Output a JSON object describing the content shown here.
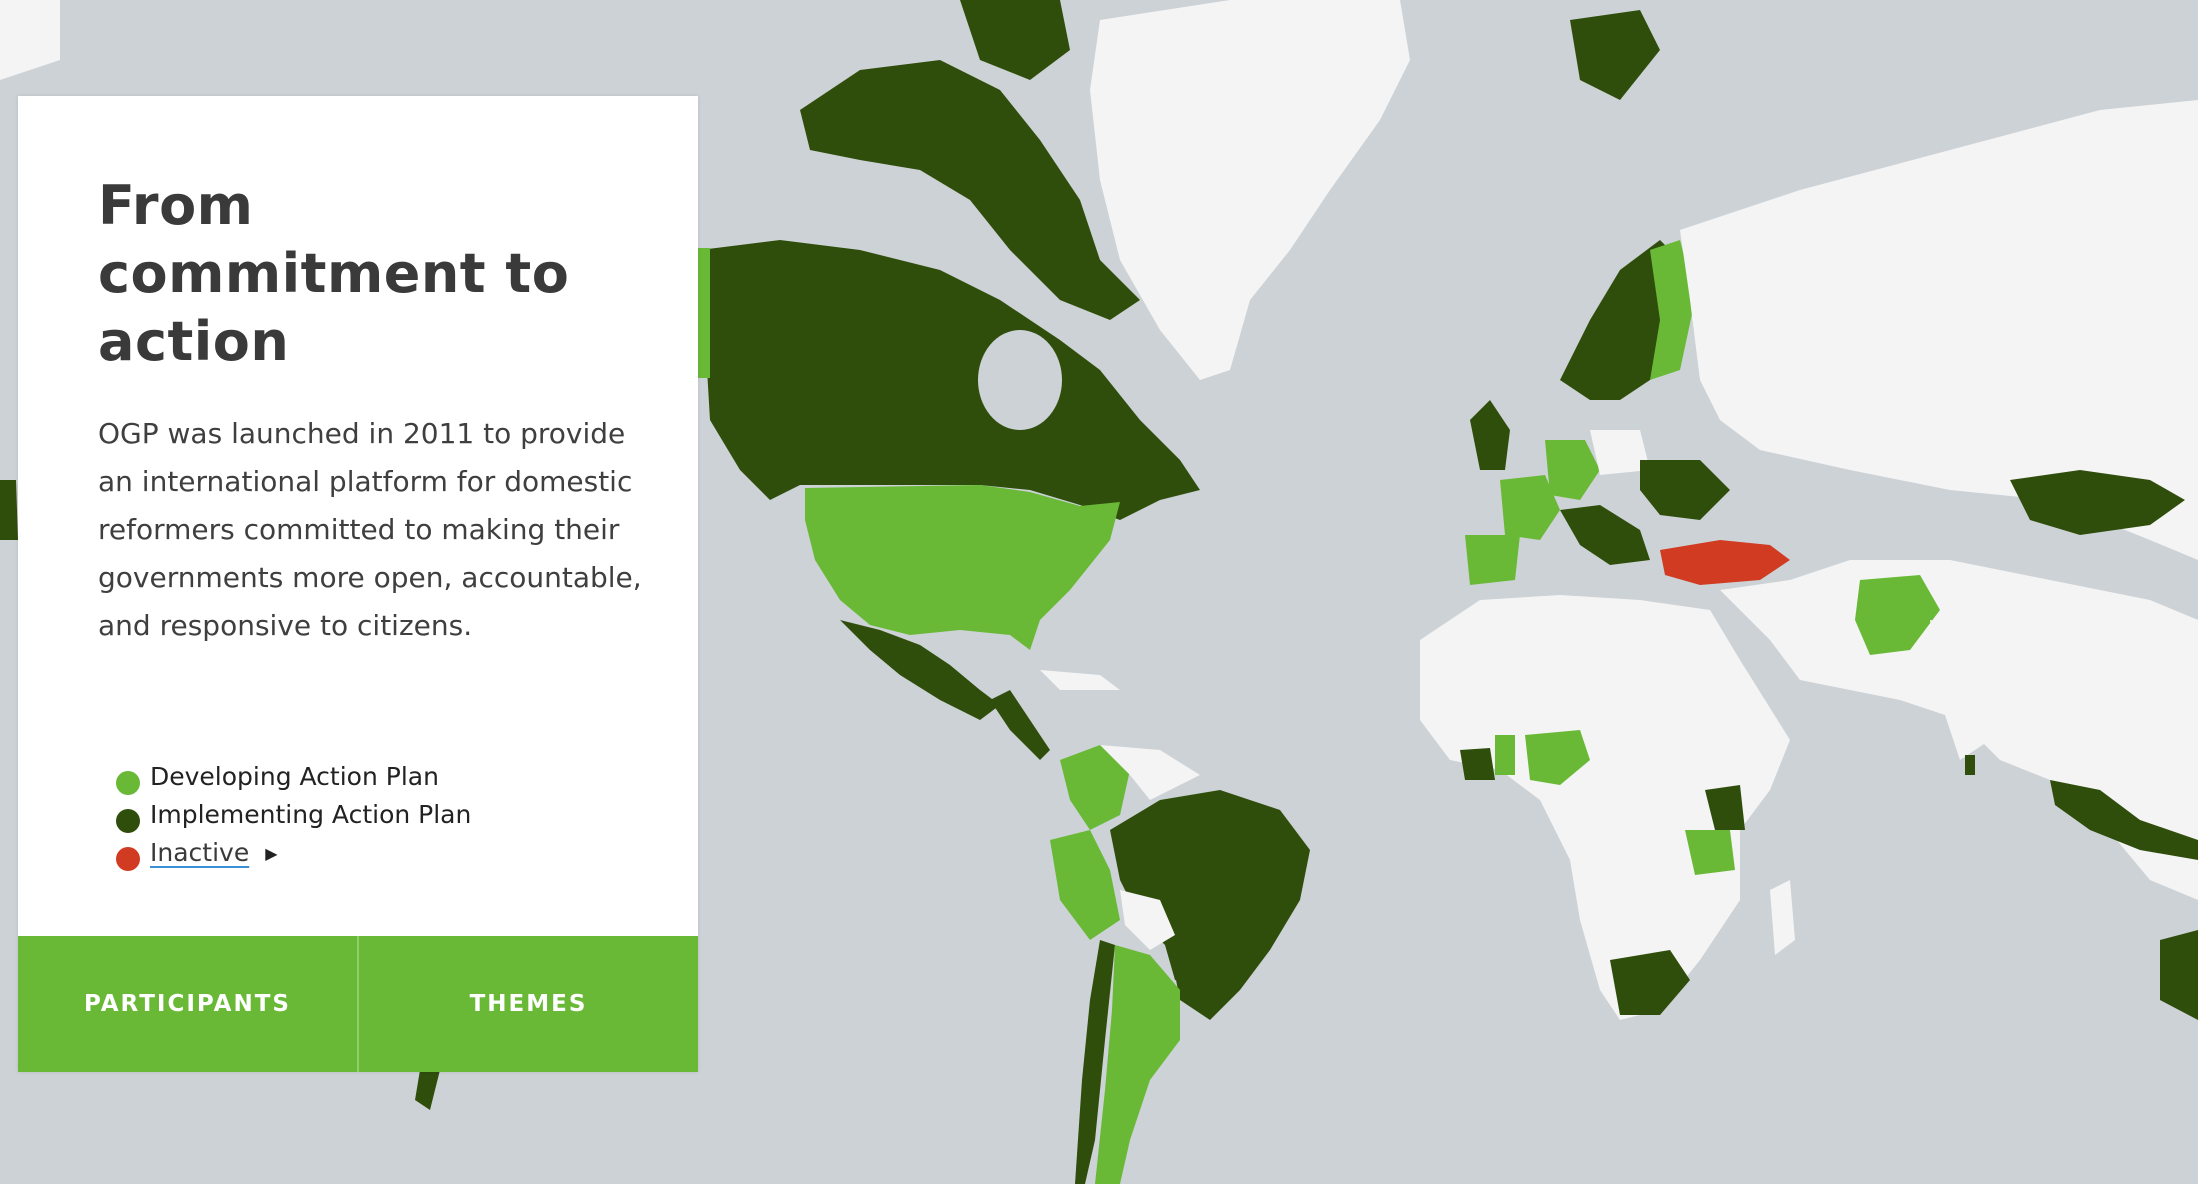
{
  "panel": {
    "title": "From commitment to action",
    "description": "OGP was launched in 2011 to provide an international platform for domestic reformers committed to making their governments more open, accountable, and responsive to citizens."
  },
  "legend": [
    {
      "label": "Developing Action Plan",
      "color": "#69b937"
    },
    {
      "label": "Implementing Action Plan",
      "color": "#2f4e0c"
    },
    {
      "label": "Inactive",
      "color": "#d13b22"
    }
  ],
  "tabs": {
    "participants": "PARTICIPANTS",
    "themes": "THEMES"
  },
  "map_colors": {
    "ocean": "#cdd2d6",
    "non_member": "#f4f4f4",
    "developing": "#69b937",
    "implementing": "#2f4e0c",
    "inactive": "#d13b22"
  }
}
